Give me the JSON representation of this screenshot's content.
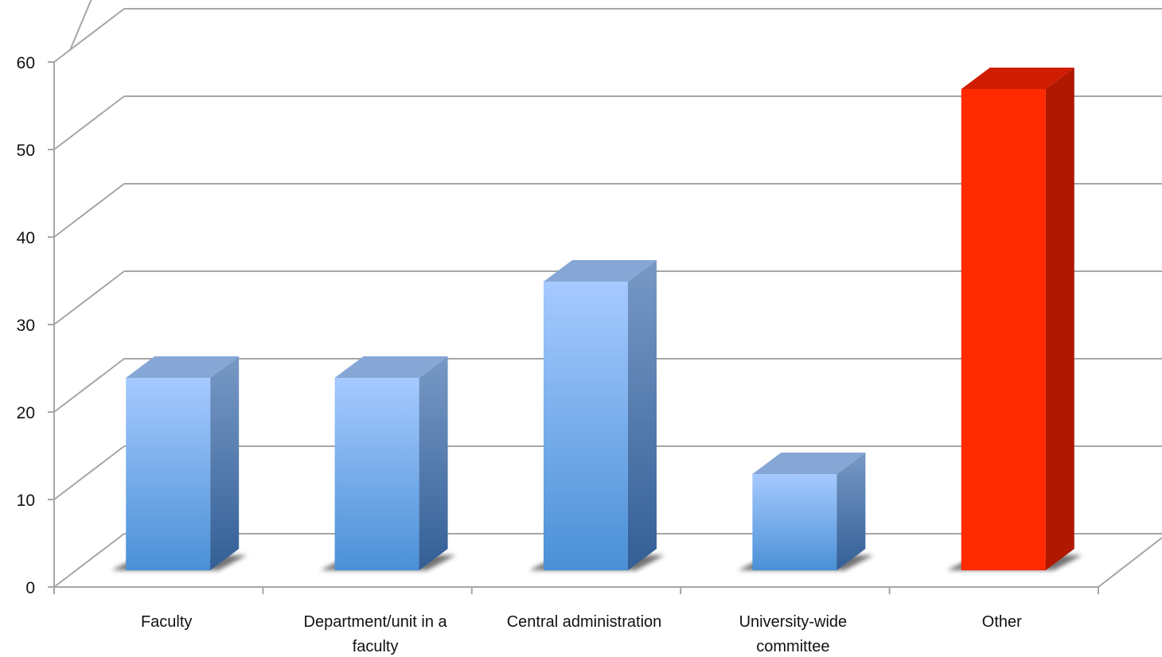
{
  "chart_data": {
    "type": "bar",
    "categories": [
      "Faculty",
      "Department/unit in a faculty",
      "Central administration",
      "University-wide committee",
      "Other"
    ],
    "category_label_lines": [
      [
        "Faculty"
      ],
      [
        "Department/unit in a",
        "faculty"
      ],
      [
        "Central administration"
      ],
      [
        "University-wide",
        "committee"
      ],
      [
        "Other"
      ]
    ],
    "values": [
      22,
      22,
      33,
      11,
      55
    ],
    "bar_colors": [
      "#6aa6e6",
      "#6aa6e6",
      "#6aa6e6",
      "#6aa6e6",
      "#ff2a00"
    ],
    "ylim": [
      0,
      60
    ],
    "yticks": [
      "0",
      "10",
      "20",
      "30",
      "40",
      "50",
      "60"
    ],
    "title": "",
    "xlabel": "",
    "ylabel": "",
    "grid": true,
    "style": "3d-bars"
  }
}
